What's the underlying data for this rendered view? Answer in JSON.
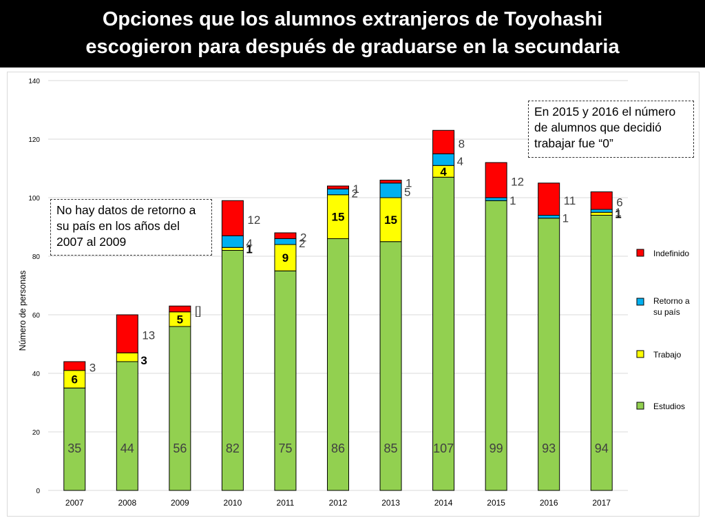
{
  "title": {
    "line1": "Opciones que los alumnos extranjeros de Toyohashi",
    "line2": "escogieron para después de graduarse en la secundaria"
  },
  "notes": {
    "left": "No hay datos de retorno a su país en los años del 2007 al 2009",
    "right": "En 2015 y 2016 el número de alumnos que decidió trabajar fue “0”"
  },
  "colors": {
    "estudios": "#92d050",
    "trabajo": "#ffff00",
    "retorno": "#00b0f0",
    "indefinido": "#ff0000",
    "grid": "#d9d9d9",
    "label": "#404040"
  },
  "chart_data": {
    "type": "bar",
    "stacked": true,
    "title": "Opciones que los alumnos extranjeros de Toyohashi escogieron para después de graduarse en la secundaria",
    "ylabel": "Número de personas",
    "xlabel": "",
    "ylim": [
      0,
      140
    ],
    "yticks": [
      "0",
      "20",
      "40",
      "60",
      "80",
      "100",
      "120",
      "140"
    ],
    "categories": [
      "2007",
      "2008",
      "2009",
      "2010",
      "2011",
      "2012",
      "2013",
      "2014",
      "2015",
      "2016",
      "2017"
    ],
    "series": [
      {
        "name": "Estudios",
        "values": [
          35,
          44,
          56,
          82,
          75,
          86,
          85,
          107,
          99,
          93,
          94
        ]
      },
      {
        "name": "Trabajo",
        "values": [
          6,
          3,
          5,
          1,
          9,
          15,
          15,
          4,
          0,
          0,
          1
        ]
      },
      {
        "name": "Retorno a su país",
        "values": [
          0,
          0,
          0,
          4,
          2,
          2,
          5,
          4,
          1,
          1,
          1
        ]
      },
      {
        "name": "Indefinido",
        "values": [
          3,
          13,
          2,
          12,
          2,
          1,
          1,
          8,
          12,
          11,
          6
        ]
      }
    ],
    "data_labels": {
      "estudios": [
        "35",
        "44",
        "56",
        "82",
        "75",
        "86",
        "85",
        "107",
        "99",
        "93",
        "94"
      ],
      "trabajo": [
        "6",
        "3",
        "5",
        "1",
        "9",
        "15",
        "15",
        "4",
        "",
        "",
        "1"
      ],
      "retorno": [
        "",
        "",
        "",
        "4",
        "2",
        "2",
        "5",
        "4",
        "1",
        "1",
        "1"
      ],
      "indefinido": [
        "3",
        "13",
        "[]",
        "12",
        "2",
        "1",
        "1",
        "8",
        "12",
        "11",
        "6"
      ]
    },
    "legend": [
      "Indefinido",
      "Retorno a su país",
      "Trabajo",
      "Estudios"
    ],
    "legend_position": "right",
    "grid": true
  }
}
